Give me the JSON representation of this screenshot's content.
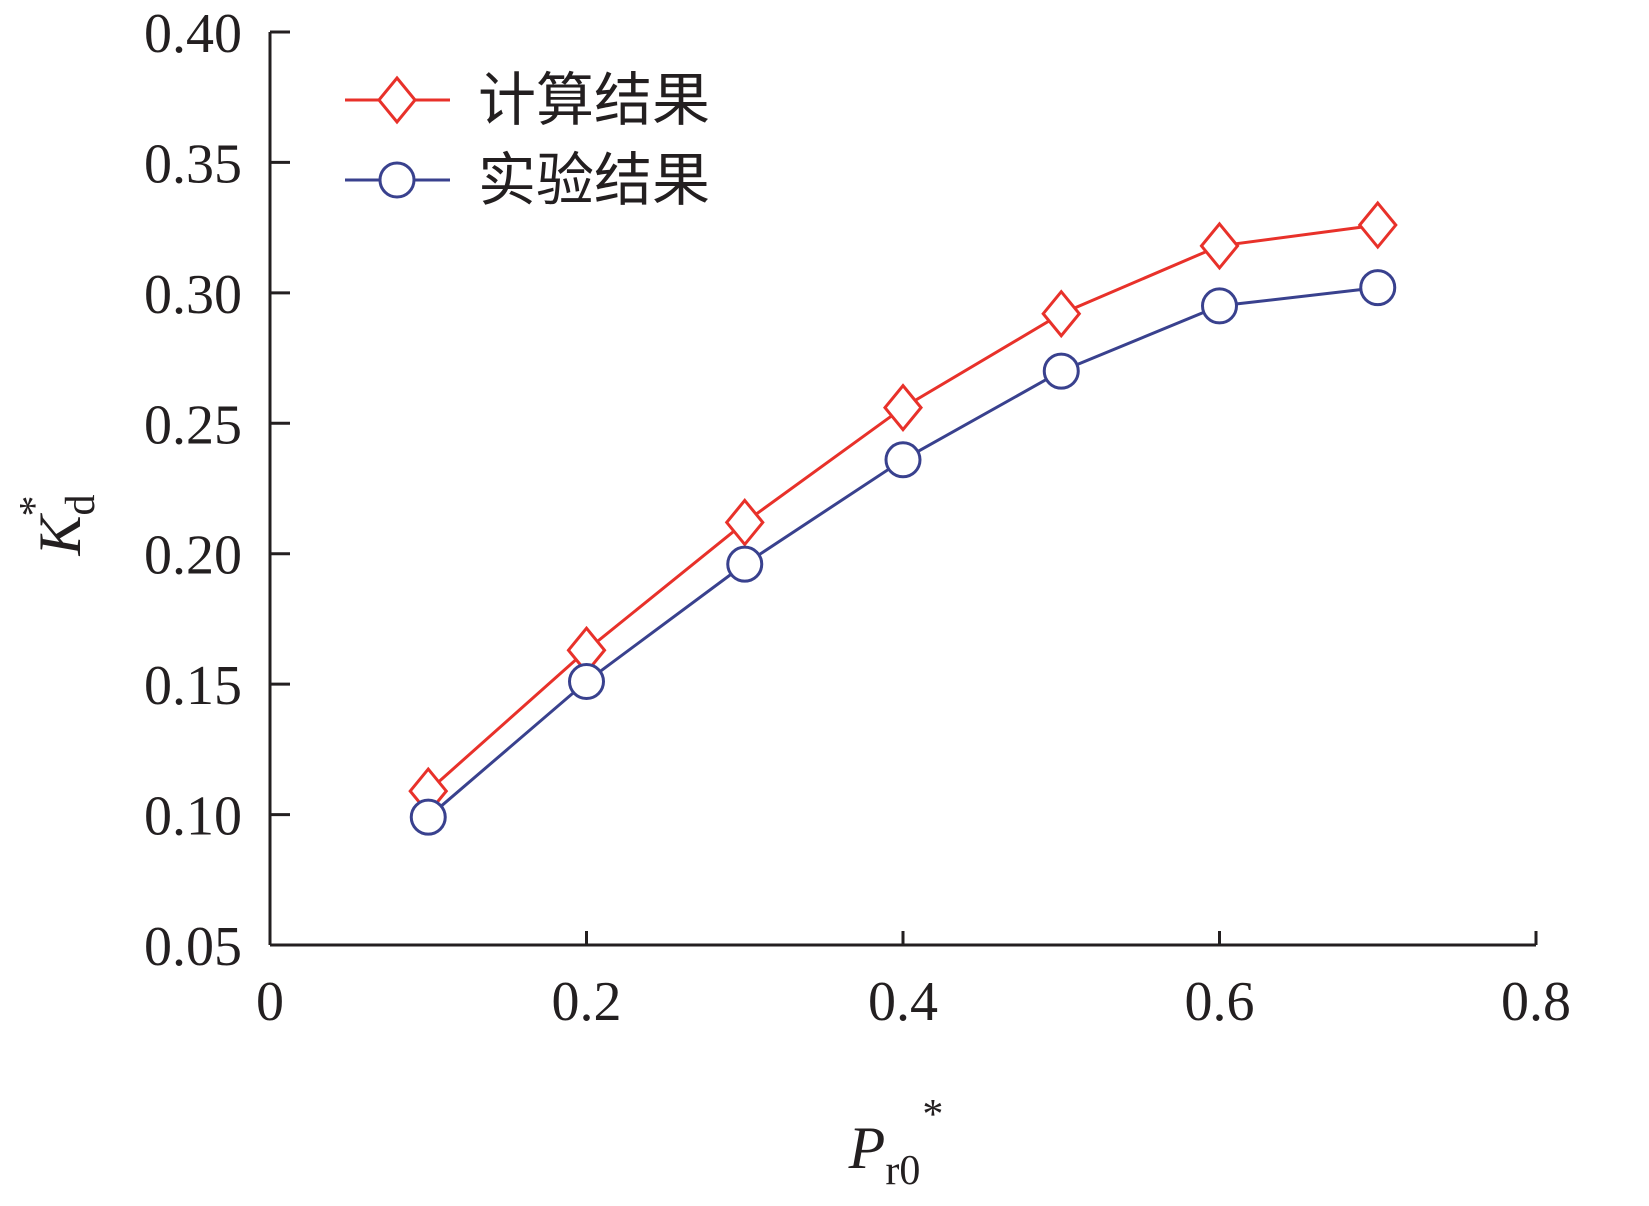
{
  "chart_data": {
    "type": "line",
    "xlabel": {
      "main": "P",
      "sub": "r0",
      "sup": "*"
    },
    "ylabel": {
      "main": "K",
      "sub": "d",
      "sup": "*"
    },
    "xlim": [
      0,
      0.8
    ],
    "ylim": [
      0.05,
      0.4
    ],
    "xticks": [
      0,
      0.2,
      0.4,
      0.6,
      0.8
    ],
    "xtick_labels": [
      "0",
      "0.2",
      "0.4",
      "0.6",
      "0.8"
    ],
    "yticks": [
      0.05,
      0.1,
      0.15,
      0.2,
      0.25,
      0.3,
      0.35,
      0.4
    ],
    "ytick_labels": [
      "0.05",
      "0.10",
      "0.15",
      "0.20",
      "0.25",
      "0.30",
      "0.35",
      "0.40"
    ],
    "grid": false,
    "legend_position": "top-left",
    "x": [
      0.1,
      0.2,
      0.3,
      0.4,
      0.5,
      0.6,
      0.7
    ],
    "series": [
      {
        "name": "计算结果",
        "marker": "diamond",
        "color": "#e8312a",
        "values": [
          0.109,
          0.163,
          0.212,
          0.256,
          0.292,
          0.318,
          0.326
        ]
      },
      {
        "name": "实验结果",
        "marker": "circle",
        "color": "#39418e",
        "values": [
          0.099,
          0.151,
          0.196,
          0.236,
          0.27,
          0.295,
          0.302
        ]
      }
    ]
  }
}
